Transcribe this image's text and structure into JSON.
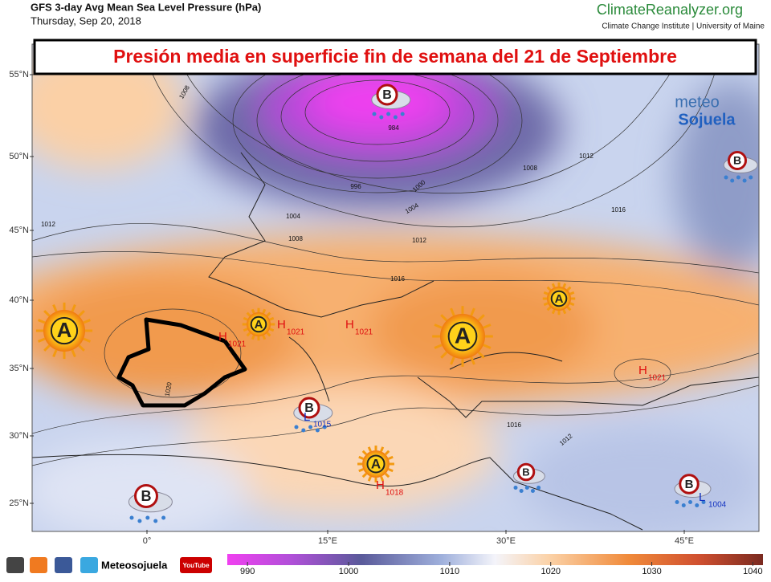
{
  "header": {
    "title": "GFS 3-day Avg Mean Sea Level Pressure (hPa)",
    "date": "Thursday, Sep 20, 2018"
  },
  "brand": {
    "name": "ClimateReanalyzer.org",
    "subtitle": "Climate Change Institute | University of Maine"
  },
  "banner": "Presión media en superficie fin de semana del 21 de Septiembre",
  "watermark": {
    "top": "meteo",
    "bottom": "Sojuela"
  },
  "map": {
    "lat_labels": [
      "55°N",
      "50°N",
      "45°N",
      "40°N",
      "35°N",
      "30°N",
      "25°N"
    ],
    "lon_labels": [
      "0°",
      "15°E",
      "30°E",
      "45°E"
    ],
    "isobar_labels": [
      "1008",
      "1012",
      "1004",
      "1008",
      "996",
      "1004",
      "1000",
      "1012",
      "1016",
      "1008",
      "1012",
      "1016",
      "1020",
      "1016",
      "1012",
      "984"
    ],
    "centers": [
      {
        "letter": "H",
        "value": "1021"
      },
      {
        "letter": "H",
        "value": "1021"
      },
      {
        "letter": "H",
        "value": "1021"
      },
      {
        "letter": "H",
        "value": "1021"
      },
      {
        "letter": "H",
        "value": "1018"
      },
      {
        "letter": "L",
        "value": "1015"
      },
      {
        "letter": "L",
        "value": "1004"
      }
    ],
    "symbols": [
      "A",
      "A",
      "A",
      "A",
      "A",
      "B",
      "B",
      "B",
      "B",
      "B",
      "B"
    ]
  },
  "footer": {
    "handle": "Meteosojuela",
    "video": "YouTube"
  },
  "colorbar": {
    "labels": [
      990,
      1000,
      1010,
      1020,
      1030,
      1040
    ]
  }
}
